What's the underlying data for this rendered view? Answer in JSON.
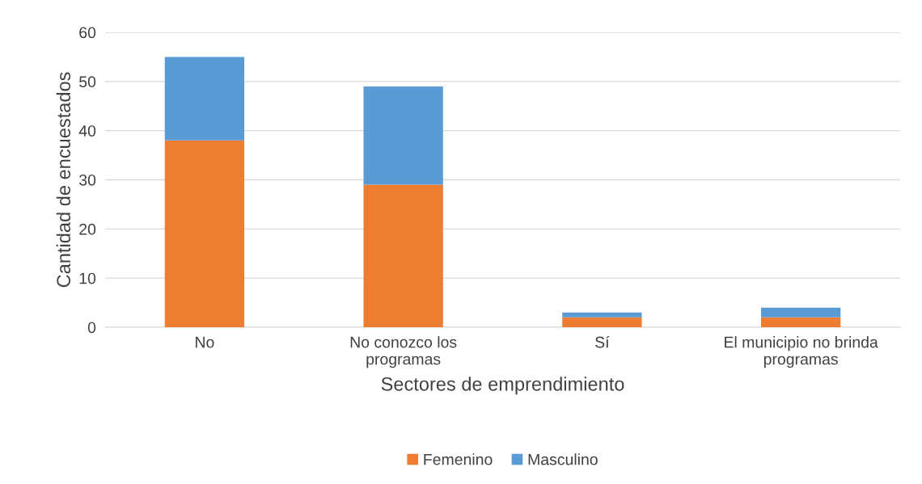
{
  "chart_data": {
    "type": "bar",
    "stacked": true,
    "xlabel": "Sectores de emprendimiento",
    "ylabel": "Cantidad de encuestados",
    "categories": [
      "No",
      "No conozco los programas",
      "Sí",
      "El municipio no brinda programas"
    ],
    "series": [
      {
        "name": "Femenino",
        "color": "#ed7d31",
        "values": [
          38,
          29,
          2,
          2
        ]
      },
      {
        "name": "Masculino",
        "color": "#5b9bd5",
        "values": [
          17,
          20,
          1,
          2
        ]
      }
    ],
    "ylim": [
      0,
      60
    ],
    "yticks": [
      0,
      10,
      20,
      30,
      40,
      50,
      60
    ],
    "grid": "y",
    "legend": "bottom"
  }
}
